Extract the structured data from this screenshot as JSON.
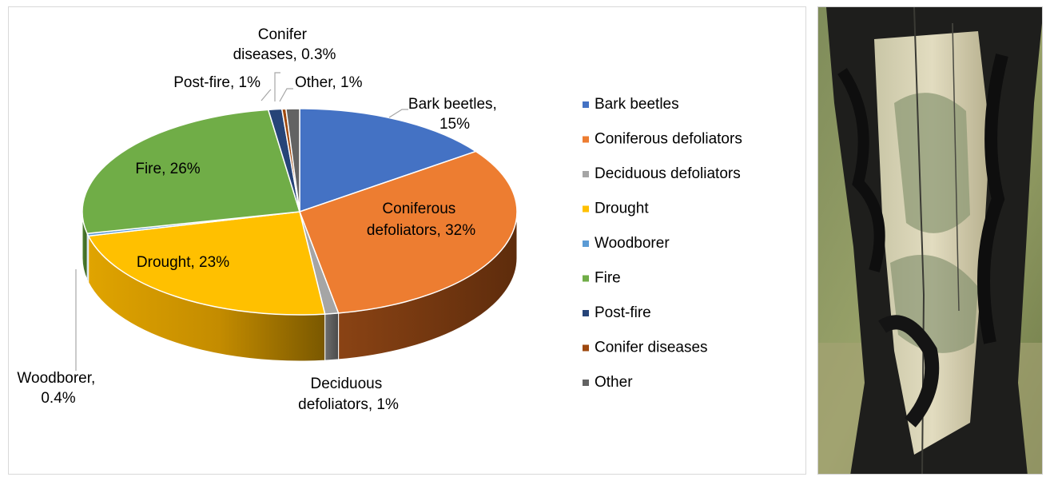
{
  "chart_data": {
    "type": "pie",
    "title": "",
    "three_d": true,
    "legend_position": "right",
    "slices": [
      {
        "label": "Bark beetles",
        "value": 15,
        "data_label": "Bark beetles, 15%",
        "color": "#4472C4"
      },
      {
        "label": "Coniferous defoliators",
        "value": 32,
        "data_label": "Coniferous defoliators, 32%",
        "color": "#ED7D31"
      },
      {
        "label": "Deciduous defoliators",
        "value": 1,
        "data_label": "Deciduous defoliators, 1%",
        "color": "#A5A5A5"
      },
      {
        "label": "Drought",
        "value": 23,
        "data_label": "Drought, 23%",
        "color": "#FFC000"
      },
      {
        "label": "Woodborer",
        "value": 0.4,
        "data_label": "Woodborer, 0.4%",
        "color": "#5B9BD5"
      },
      {
        "label": "Fire",
        "value": 26,
        "data_label": "Fire, 26%",
        "color": "#70AD47"
      },
      {
        "label": "Post-fire",
        "value": 1,
        "data_label": "Post-fire, 1%",
        "color": "#264478"
      },
      {
        "label": "Conifer diseases",
        "value": 0.3,
        "data_label": "Conifer diseases, 0.3%",
        "color": "#9E480E"
      },
      {
        "label": "Other",
        "value": 1,
        "data_label": "Other, 1%",
        "color": "#636363"
      }
    ]
  },
  "labels": {
    "bark_beetles": [
      "Bark beetles,",
      "15%"
    ],
    "coniferous": [
      "Coniferous",
      "defoliators, 32%"
    ],
    "deciduous": [
      "Deciduous",
      "defoliators, 1%"
    ],
    "drought": [
      "Drought, 23%"
    ],
    "woodborer": [
      "Woodborer,",
      "0.4%"
    ],
    "fire": [
      "Fire, 26%"
    ],
    "post_fire": [
      "Post-fire, 1%"
    ],
    "conifer_diseases": [
      "Conifer",
      "diseases, 0.3%"
    ],
    "other": [
      "Other, 1%"
    ]
  },
  "photo": {
    "subject": "charred-tree-trunk"
  }
}
